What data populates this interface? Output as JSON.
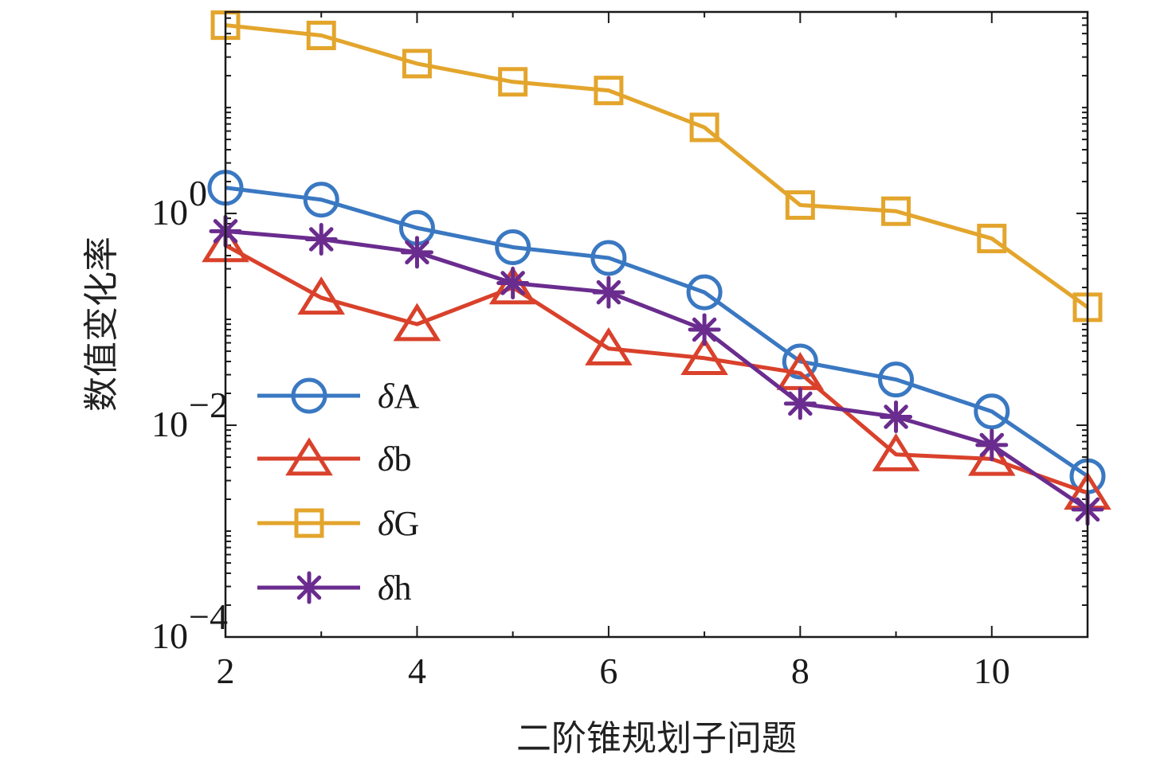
{
  "chart_data": {
    "type": "line",
    "xlabel": "二阶锥规划子问题",
    "ylabel": "数值变化率",
    "x": [
      2,
      3,
      4,
      5,
      6,
      7,
      8,
      9,
      10,
      11
    ],
    "x_ticks": [
      "2",
      "4",
      "6",
      "8",
      "10"
    ],
    "x_tick_values": [
      2,
      4,
      6,
      8,
      10
    ],
    "xlim": [
      2,
      11
    ],
    "y_scale": "log",
    "ylim": [
      0.0001,
      80
    ],
    "y_ticks": [
      {
        "value": 1,
        "base": "10",
        "exp": "0"
      },
      {
        "value": 0.01,
        "base": "10",
        "exp": "−2"
      },
      {
        "value": 0.0001,
        "base": "10",
        "exp": "−4"
      }
    ],
    "legend_position": "lower-left",
    "series": [
      {
        "name": "δA",
        "symbol": "δ",
        "suffix": "A",
        "marker": "circle",
        "color": "#3a78c2",
        "values": [
          1.75,
          1.35,
          0.73,
          0.48,
          0.38,
          0.18,
          0.04,
          0.027,
          0.0135,
          0.0033
        ]
      },
      {
        "name": "δb",
        "symbol": "δ",
        "suffix": "b",
        "marker": "triangle",
        "color": "#d9412b",
        "values": [
          0.5,
          0.16,
          0.09,
          0.2,
          0.053,
          0.043,
          0.031,
          0.0053,
          0.0048,
          0.0023
        ]
      },
      {
        "name": "δG",
        "symbol": "δ",
        "suffix": "G",
        "marker": "square",
        "color": "#e3a52c",
        "values": [
          60,
          48,
          26,
          17.5,
          14.5,
          6.5,
          1.2,
          1.05,
          0.58,
          0.13
        ]
      },
      {
        "name": "δh",
        "symbol": "δ",
        "suffix": "h",
        "marker": "asterisk",
        "color": "#6a2c8e",
        "values": [
          0.68,
          0.57,
          0.43,
          0.22,
          0.18,
          0.08,
          0.016,
          0.012,
          0.0065,
          0.0016
        ]
      }
    ]
  }
}
